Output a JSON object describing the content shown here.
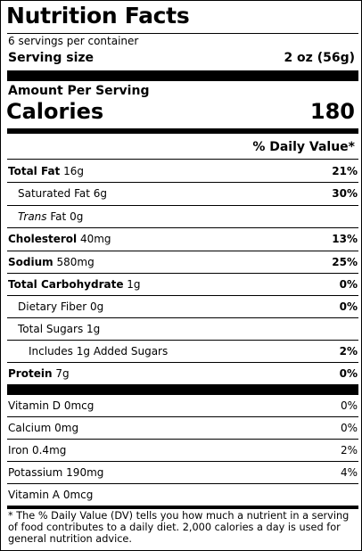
{
  "header": {
    "title": "Nutrition Facts",
    "servings_per_container": "6 servings per container",
    "serving_size_label": "Serving size",
    "serving_size_value": "2 oz (56g)"
  },
  "calories": {
    "amount_per_serving": "Amount Per Serving",
    "label": "Calories",
    "value": "180"
  },
  "daily_value_header": "% Daily Value*",
  "nutrients": [
    {
      "name": "Total Fat",
      "amount": "16g",
      "dv": "21%"
    },
    {
      "name": "Saturated Fat",
      "amount": "6g",
      "dv": "30%"
    },
    {
      "name_italic": "Trans",
      "name": "Fat",
      "amount": "0g",
      "dv": ""
    },
    {
      "name": "Cholesterol",
      "amount": "40mg",
      "dv": "13%"
    },
    {
      "name": "Sodium",
      "amount": "580mg",
      "dv": "25%"
    },
    {
      "name": "Total Carbohydrate",
      "amount": "1g",
      "dv": "0%"
    },
    {
      "name": "Dietary Fiber",
      "amount": "0g",
      "dv": "0%"
    },
    {
      "name": "Total Sugars",
      "amount": "1g",
      "dv": ""
    },
    {
      "name": "Includes 1g Added Sugars",
      "amount": "",
      "dv": "2%"
    },
    {
      "name": "Protein",
      "amount": "7g",
      "dv": "0%"
    }
  ],
  "vitamins": [
    {
      "name": "Vitamin D",
      "amount": "0mcg",
      "dv": "0%"
    },
    {
      "name": "Calcium",
      "amount": "0mg",
      "dv": "0%"
    },
    {
      "name": "Iron",
      "amount": "0.4mg",
      "dv": "2%"
    },
    {
      "name": "Potassium",
      "amount": "190mg",
      "dv": "4%"
    },
    {
      "name": "Vitamin A",
      "amount": "0mcg",
      "dv": ""
    }
  ],
  "footnote": "* The % Daily Value (DV) tells you how much a nutrient in a serving of food contributes to a daily diet. 2,000 calories a day is used for general nutrition advice."
}
